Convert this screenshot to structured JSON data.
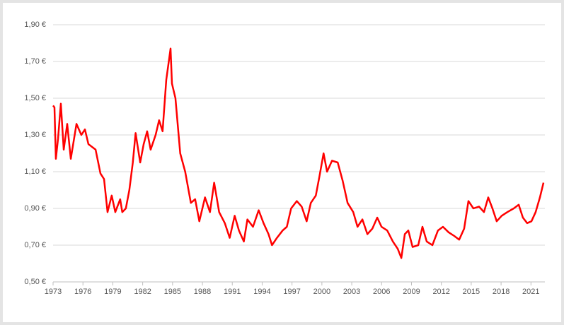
{
  "chart_data": {
    "type": "line",
    "color": "#ff0000",
    "x": [
      1973.0,
      1973.14,
      1973.28,
      1973.5,
      1973.78,
      1974.07,
      1974.42,
      1974.78,
      1975.35,
      1975.84,
      1976.2,
      1976.55,
      1977.27,
      1977.76,
      1978.12,
      1978.47,
      1978.89,
      1979.25,
      1979.74,
      1979.95,
      1980.31,
      1980.66,
      1981.01,
      1981.29,
      1981.75,
      1982.1,
      1982.45,
      1982.8,
      1983.3,
      1983.65,
      1984.0,
      1984.37,
      1984.8,
      1984.94,
      1985.29,
      1985.77,
      1986.27,
      1986.84,
      1987.27,
      1987.69,
      1988.26,
      1988.76,
      1989.18,
      1989.68,
      1990.25,
      1990.74,
      1991.24,
      1991.67,
      1992.16,
      1992.52,
      1993.08,
      1993.65,
      1994.14,
      1994.64,
      1994.99,
      1995.49,
      1996.06,
      1996.48,
      1996.91,
      1997.48,
      1997.97,
      1998.47,
      1998.89,
      1999.39,
      1999.74,
      2000.17,
      2000.52,
      2001.02,
      2001.59,
      2002.09,
      2002.58,
      2003.15,
      2003.58,
      2004.07,
      2004.57,
      2005.07,
      2005.56,
      2005.99,
      2006.56,
      2007.13,
      2007.62,
      2007.98,
      2008.33,
      2008.68,
      2009.11,
      2009.68,
      2010.1,
      2010.53,
      2011.1,
      2011.66,
      2012.16,
      2012.73,
      2013.3,
      2013.79,
      2014.29,
      2014.72,
      2015.22,
      2015.78,
      2016.28,
      2016.71,
      2017.13,
      2017.56,
      2018.06,
      2018.63,
      2019.27,
      2019.77,
      2020.19,
      2020.62,
      2021.05,
      2021.47,
      2021.9,
      2022.26
    ],
    "values": [
      1.46,
      1.45,
      1.17,
      1.28,
      1.47,
      1.22,
      1.36,
      1.17,
      1.36,
      1.3,
      1.33,
      1.25,
      1.22,
      1.09,
      1.06,
      0.88,
      0.97,
      0.88,
      0.95,
      0.88,
      0.9,
      1.0,
      1.15,
      1.31,
      1.15,
      1.25,
      1.32,
      1.22,
      1.3,
      1.38,
      1.32,
      1.6,
      1.77,
      1.58,
      1.5,
      1.2,
      1.1,
      0.93,
      0.95,
      0.83,
      0.96,
      0.88,
      1.04,
      0.88,
      0.82,
      0.74,
      0.86,
      0.78,
      0.72,
      0.84,
      0.8,
      0.89,
      0.82,
      0.76,
      0.7,
      0.74,
      0.78,
      0.8,
      0.9,
      0.94,
      0.91,
      0.83,
      0.93,
      0.97,
      1.07,
      1.2,
      1.1,
      1.16,
      1.15,
      1.05,
      0.93,
      0.88,
      0.8,
      0.84,
      0.76,
      0.79,
      0.85,
      0.8,
      0.78,
      0.72,
      0.68,
      0.63,
      0.76,
      0.78,
      0.69,
      0.7,
      0.8,
      0.72,
      0.7,
      0.78,
      0.8,
      0.77,
      0.75,
      0.73,
      0.79,
      0.94,
      0.9,
      0.91,
      0.88,
      0.96,
      0.9,
      0.83,
      0.86,
      0.88,
      0.9,
      0.92,
      0.85,
      0.82,
      0.83,
      0.88,
      0.96,
      1.04
    ],
    "xlim": [
      1973,
      2022.4
    ],
    "xticks": [
      1973,
      1976,
      1979,
      1982,
      1985,
      1988,
      1991,
      1994,
      1997,
      2000,
      2003,
      2006,
      2009,
      2012,
      2015,
      2018,
      2021
    ],
    "ylim": [
      0.5,
      1.9
    ],
    "yticks": [
      {
        "value": 0.5,
        "label": "0,50 €"
      },
      {
        "value": 0.7,
        "label": "0,70 €"
      },
      {
        "value": 0.9,
        "label": "0,90 €"
      },
      {
        "value": 1.1,
        "label": "1,10 €"
      },
      {
        "value": 1.3,
        "label": "1,30 €"
      },
      {
        "value": 1.5,
        "label": "1,50 €"
      },
      {
        "value": 1.7,
        "label": "1,70 €"
      },
      {
        "value": 1.9,
        "label": "1,90 €"
      }
    ],
    "grid": true
  }
}
